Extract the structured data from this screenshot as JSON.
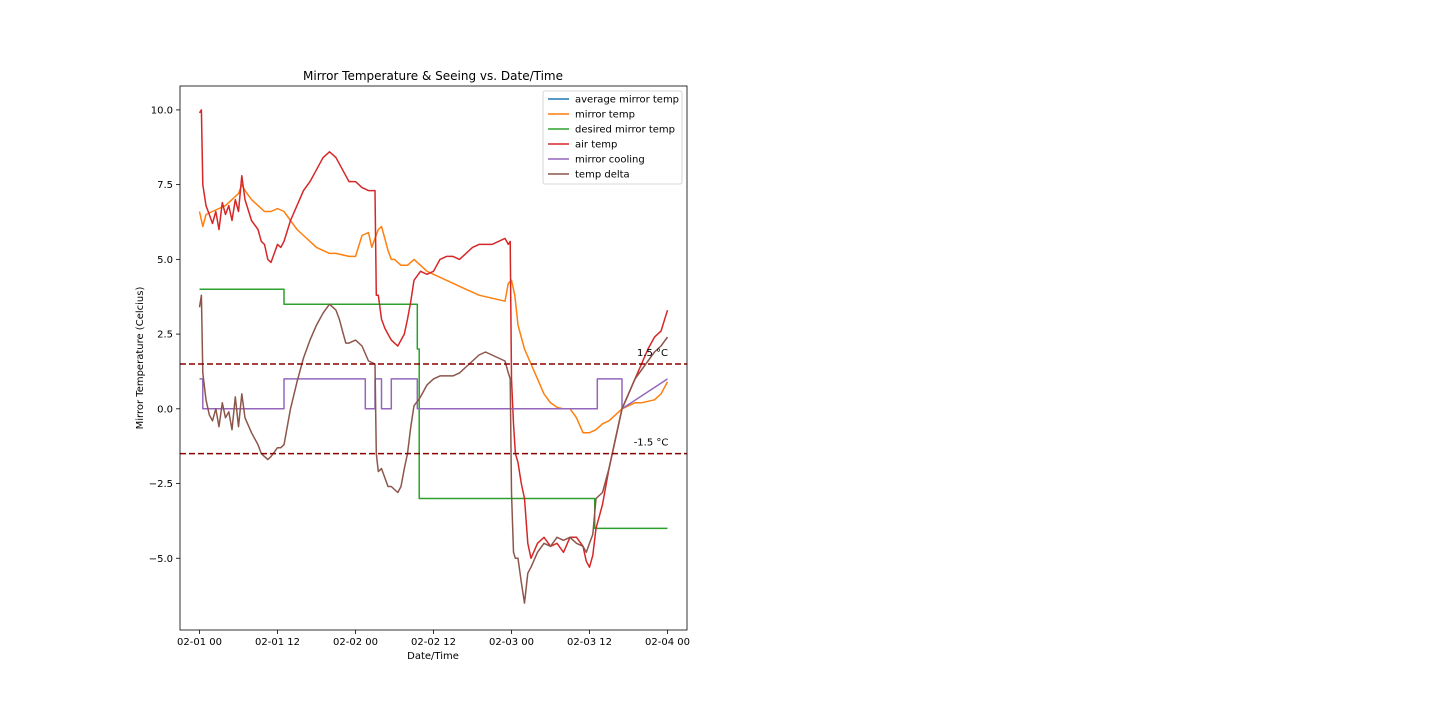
{
  "chart_data": {
    "type": "line",
    "title": "Mirror Temperature & Seeing vs. Date/Time",
    "xlabel": "Date/Time",
    "ylabel": "Mirror Temperature (Celcius)",
    "x_unit": "hours",
    "xlim_hours": [
      -3,
      75
    ],
    "ylim": [
      -7.4,
      10.8
    ],
    "x_ticks": [
      {
        "h": 0,
        "label": "02-01 00"
      },
      {
        "h": 12,
        "label": "02-01 12"
      },
      {
        "h": 24,
        "label": "02-02 00"
      },
      {
        "h": 36,
        "label": "02-02 12"
      },
      {
        "h": 48,
        "label": "02-03 00"
      },
      {
        "h": 60,
        "label": "02-03 12"
      },
      {
        "h": 72,
        "label": "02-04 00"
      }
    ],
    "y_ticks": [
      {
        "v": 10.0,
        "label": "10.0"
      },
      {
        "v": 7.5,
        "label": "7.5"
      },
      {
        "v": 5.0,
        "label": "5.0"
      },
      {
        "v": 2.5,
        "label": "2.5"
      },
      {
        "v": 0.0,
        "label": "0.0"
      },
      {
        "v": -2.5,
        "label": "−2.5"
      },
      {
        "v": -5.0,
        "label": "−5.0"
      }
    ],
    "grid": false,
    "legend_position": "upper-right",
    "thresholds": [
      {
        "value": 1.5,
        "label": "1.5 °C",
        "label_h": 67.3,
        "color": "#8b0000"
      },
      {
        "value": -1.5,
        "label": "-1.5 °C",
        "label_h": 66.8,
        "color": "#8b0000"
      }
    ],
    "series": [
      {
        "name": "average mirror temp",
        "color": "#1f77b4",
        "x": [],
        "y": []
      },
      {
        "name": "mirror temp",
        "color": "#ff7f0e",
        "x": [
          0,
          0.5,
          1,
          2,
          3,
          4,
          5,
          6,
          6.5,
          7,
          8,
          9,
          10,
          11,
          12,
          13,
          14,
          15,
          16,
          17,
          18,
          19,
          20,
          21,
          22,
          23,
          24,
          25,
          26,
          26.5,
          27,
          27.5,
          28,
          28.5,
          29,
          29.5,
          30,
          30.5,
          31,
          32,
          33,
          34,
          35,
          36,
          37,
          38,
          39,
          40,
          41,
          42,
          43,
          44,
          45,
          46,
          47,
          47.5,
          48,
          48.5,
          49,
          50,
          51,
          52,
          53,
          54,
          55,
          56,
          57,
          58,
          59,
          60,
          61,
          62,
          63,
          64,
          65,
          66,
          67,
          68,
          69,
          70,
          71,
          72
        ],
        "y": [
          6.6,
          6.1,
          6.5,
          6.6,
          6.7,
          6.8,
          7.0,
          7.2,
          7.5,
          7.3,
          7.0,
          6.8,
          6.6,
          6.6,
          6.7,
          6.6,
          6.3,
          6.0,
          5.8,
          5.6,
          5.4,
          5.3,
          5.2,
          5.2,
          5.15,
          5.1,
          5.1,
          5.8,
          5.9,
          5.4,
          5.7,
          6.0,
          6.1,
          5.7,
          5.3,
          5.0,
          5.0,
          4.9,
          4.8,
          4.8,
          5.0,
          4.8,
          4.6,
          4.5,
          4.4,
          4.3,
          4.2,
          4.1,
          4.0,
          3.9,
          3.8,
          3.75,
          3.7,
          3.65,
          3.6,
          4.2,
          4.3,
          3.8,
          2.8,
          2.0,
          1.5,
          1.0,
          0.5,
          0.2,
          0.05,
          0.0,
          0.0,
          -0.3,
          -0.8,
          -0.8,
          -0.7,
          -0.5,
          -0.4,
          -0.2,
          0.0,
          0.1,
          0.2,
          0.2,
          0.25,
          0.3,
          0.5,
          0.9
        ]
      },
      {
        "name": "desired mirror temp",
        "color": "#2ca02c",
        "x": [
          0,
          13,
          13,
          33.5,
          33.5,
          33.8,
          33.8,
          60.8,
          60.8,
          72
        ],
        "y": [
          4.0,
          4.0,
          3.5,
          3.5,
          2.0,
          2.0,
          -3.0,
          -3.0,
          -4.0,
          -4.0
        ]
      },
      {
        "name": "air temp",
        "color": "#d62728",
        "x": [
          0,
          0.3,
          0.5,
          1,
          1.5,
          2,
          2.5,
          3,
          3.5,
          4,
          4.5,
          5,
          5.5,
          6,
          6.5,
          7,
          8,
          9,
          9.5,
          10,
          10.5,
          11,
          12,
          12.5,
          13,
          14,
          15,
          16,
          17,
          18,
          19,
          20,
          20.5,
          21,
          21.5,
          22,
          22.5,
          23,
          24,
          25,
          26,
          27,
          27.2,
          27.5,
          28,
          28.5,
          29,
          29.5,
          30,
          30.5,
          31,
          31.5,
          32,
          32.5,
          33,
          34,
          35,
          36,
          37,
          38,
          39,
          40,
          41,
          42,
          43,
          44,
          45,
          46,
          47,
          47.5,
          47.8,
          48,
          48.3,
          48.6,
          49,
          49.5,
          50,
          50.5,
          51,
          52,
          53,
          54,
          55,
          56,
          57,
          58,
          59,
          59.5,
          60,
          60.5,
          61,
          62,
          63,
          64,
          65,
          66,
          67,
          68,
          69,
          70,
          71,
          72
        ],
        "y": [
          9.9,
          10.0,
          7.5,
          6.8,
          6.5,
          6.2,
          6.6,
          6.0,
          6.9,
          6.5,
          6.8,
          6.3,
          7.0,
          6.6,
          7.8,
          7.0,
          6.3,
          6.0,
          5.6,
          5.5,
          5.0,
          4.9,
          5.5,
          5.4,
          5.6,
          6.3,
          6.8,
          7.3,
          7.6,
          8.0,
          8.4,
          8.6,
          8.5,
          8.4,
          8.2,
          8.0,
          7.8,
          7.6,
          7.6,
          7.4,
          7.3,
          7.3,
          3.8,
          3.8,
          3.0,
          2.7,
          2.5,
          2.3,
          2.2,
          2.1,
          2.3,
          2.5,
          3.0,
          3.6,
          4.3,
          4.6,
          4.5,
          4.6,
          5.0,
          5.1,
          5.1,
          5.0,
          5.2,
          5.4,
          5.5,
          5.5,
          5.5,
          5.6,
          5.7,
          5.5,
          5.6,
          1.0,
          -0.5,
          -1.5,
          -1.8,
          -2.5,
          -3.0,
          -4.5,
          -5.0,
          -4.5,
          -4.3,
          -4.6,
          -4.5,
          -4.8,
          -4.3,
          -4.3,
          -4.6,
          -5.1,
          -5.3,
          -4.9,
          -4.0,
          -3.2,
          -2.0,
          -1.0,
          0.0,
          0.5,
          1.0,
          1.5,
          2.0,
          2.4,
          2.6,
          3.3
        ]
      },
      {
        "name": "mirror cooling",
        "color": "#9467bd",
        "x": [
          0,
          0.5,
          0.5,
          13,
          13,
          25.5,
          25.5,
          27.0,
          27.0,
          28.0,
          28.0,
          29.5,
          29.5,
          33.5,
          33.5,
          49.5,
          49.5,
          61.2,
          61.2,
          65,
          65,
          72
        ],
        "y": [
          1,
          1,
          0,
          0,
          1,
          1,
          0,
          0,
          1,
          1,
          0,
          0,
          1,
          1,
          0,
          0,
          0,
          0,
          1,
          1,
          0,
          1
        ]
      },
      {
        "name": "temp delta",
        "color": "#8c564b",
        "x": [
          0,
          0.3,
          0.5,
          1,
          1.5,
          2,
          2.5,
          3,
          3.5,
          4,
          4.5,
          5,
          5.5,
          6,
          6.5,
          7,
          8,
          9,
          9.5,
          10,
          10.5,
          11,
          12,
          12.5,
          13,
          14,
          15,
          16,
          17,
          18,
          19,
          20,
          20.5,
          21,
          21.5,
          22,
          22.5,
          23,
          24,
          25,
          26,
          27,
          27.2,
          27.5,
          28,
          28.5,
          29,
          29.5,
          30,
          30.5,
          31,
          31.5,
          32,
          32.5,
          33,
          34,
          35,
          36,
          37,
          38,
          39,
          40,
          41,
          42,
          43,
          44,
          45,
          46,
          47,
          47.5,
          47.8,
          48,
          48.3,
          48.6,
          49,
          49.5,
          50,
          50.5,
          51,
          52,
          53,
          54,
          55,
          56,
          57,
          58,
          59,
          59.5,
          60,
          60.5,
          61,
          62,
          63,
          64,
          65,
          66,
          67,
          68,
          69,
          70,
          71,
          72
        ],
        "y": [
          3.4,
          3.8,
          1.2,
          0.3,
          -0.2,
          -0.4,
          0.0,
          -0.6,
          0.2,
          -0.3,
          -0.1,
          -0.7,
          0.4,
          -0.6,
          0.5,
          -0.3,
          -0.8,
          -1.2,
          -1.5,
          -1.6,
          -1.7,
          -1.6,
          -1.3,
          -1.3,
          -1.2,
          0.0,
          0.9,
          1.7,
          2.3,
          2.8,
          3.2,
          3.5,
          3.4,
          3.3,
          3.0,
          2.6,
          2.2,
          2.2,
          2.3,
          2.1,
          1.6,
          1.5,
          -1.5,
          -2.1,
          -2.0,
          -2.3,
          -2.6,
          -2.6,
          -2.7,
          -2.8,
          -2.6,
          -2.0,
          -1.5,
          -0.6,
          0.1,
          0.4,
          0.8,
          1.0,
          1.1,
          1.1,
          1.1,
          1.2,
          1.4,
          1.6,
          1.8,
          1.9,
          1.8,
          1.7,
          1.6,
          1.2,
          1.0,
          -2.8,
          -4.8,
          -5.0,
          -5.0,
          -5.8,
          -6.5,
          -5.5,
          -5.3,
          -4.8,
          -4.5,
          -4.6,
          -4.3,
          -4.4,
          -4.3,
          -4.5,
          -4.6,
          -4.8,
          -4.5,
          -4.2,
          -3.0,
          -2.8,
          -2.0,
          -1.0,
          0.0,
          0.5,
          1.0,
          1.3,
          1.6,
          1.9,
          2.1,
          2.4
        ]
      }
    ]
  }
}
